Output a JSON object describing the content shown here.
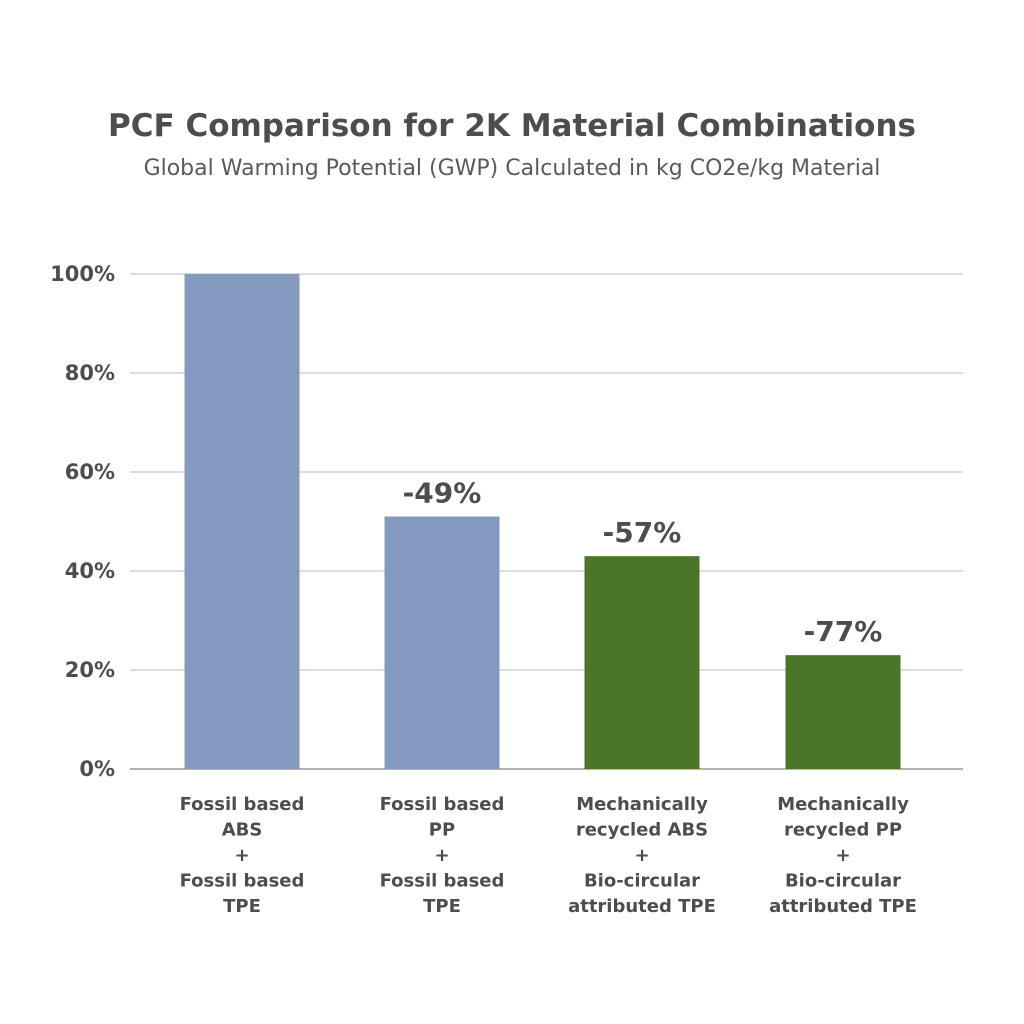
{
  "chart_data": {
    "type": "bar",
    "title": "PCF Comparison for 2K Material Combinations",
    "subtitle": "Global Warming Potential (GWP) Calculated in kg CO2e/kg Material",
    "xlabel": "",
    "ylabel": "",
    "ylim": [
      0,
      100
    ],
    "y_ticks": [
      0,
      20,
      40,
      60,
      80,
      100
    ],
    "y_tick_labels": [
      "0%",
      "20%",
      "40%",
      "60%",
      "80%",
      "100%"
    ],
    "grid": true,
    "legend": "none",
    "categories": [
      [
        "Fossil based",
        "ABS",
        "+",
        "Fossil based",
        "TPE"
      ],
      [
        "Fossil based",
        "PP",
        "+",
        "Fossil based",
        "TPE"
      ],
      [
        "Mechanically",
        "recycled ABS",
        "+",
        "Bio-circular",
        "attributed TPE"
      ],
      [
        "Mechanically",
        "recycled PP",
        "+",
        "Bio-circular",
        "attributed TPE"
      ]
    ],
    "values": [
      100,
      51,
      43,
      23
    ],
    "data_labels": [
      "",
      "-49%",
      "-57%",
      "-77%"
    ],
    "bar_colors": [
      "#8499bf",
      "#8499bf",
      "#4b7628",
      "#4b7628"
    ],
    "text_color": "#4d4d4d",
    "grid_color": "#b8b8b8"
  }
}
